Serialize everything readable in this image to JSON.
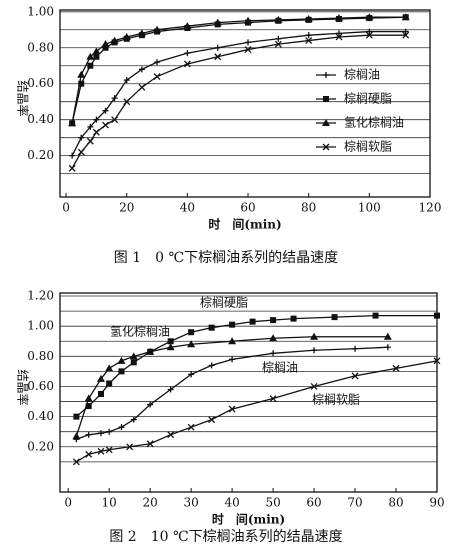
{
  "chart_data": [
    {
      "type": "line",
      "ylabel": "结晶率",
      "xlabel": "时　间(min)",
      "caption": "图 1　0 ℃下棕榈油系列的结晶速度",
      "xlim": [
        -2,
        120
      ],
      "xticks": [
        0,
        20,
        40,
        60,
        80,
        100,
        120
      ],
      "ylim": [
        -0.03,
        1.01
      ],
      "yticks": [
        {
          "value": 0.2,
          "label": "0.20"
        },
        {
          "value": 0.4,
          "label": "0.40"
        },
        {
          "value": 0.6,
          "label": "0.60"
        },
        {
          "value": 0.8,
          "label": "0.80"
        },
        {
          "value": 1,
          "label": "1.00"
        }
      ],
      "minor_yticks": [
        0.1,
        0.3,
        0.5,
        0.7,
        0.9
      ],
      "grid": true,
      "legend": "right",
      "series": [
        {
          "name": "棕榈油",
          "marker": "plus",
          "color": "#111111",
          "x": [
            2,
            5,
            8,
            10,
            13,
            16,
            20,
            25,
            30,
            40,
            50,
            60,
            70,
            80,
            90,
            100,
            112
          ],
          "values": [
            0.2,
            0.3,
            0.36,
            0.4,
            0.45,
            0.52,
            0.62,
            0.68,
            0.72,
            0.77,
            0.8,
            0.83,
            0.85,
            0.87,
            0.88,
            0.89,
            0.89
          ]
        },
        {
          "name": "棕榈硬脂",
          "marker": "square",
          "color": "#111111",
          "x": [
            2,
            5,
            8,
            10,
            13,
            16,
            20,
            25,
            30,
            40,
            50,
            60,
            70,
            80,
            90,
            100,
            112
          ],
          "values": [
            0.38,
            0.6,
            0.7,
            0.75,
            0.8,
            0.83,
            0.85,
            0.87,
            0.89,
            0.91,
            0.93,
            0.94,
            0.95,
            0.955,
            0.96,
            0.965,
            0.97
          ]
        },
        {
          "name": "氢化棕榈油",
          "marker": "triangle",
          "color": "#111111",
          "x": [
            2,
            5,
            8,
            10,
            13,
            16,
            20,
            25,
            30,
            40,
            50,
            60,
            70,
            80,
            90,
            100,
            112
          ],
          "values": [
            0.38,
            0.65,
            0.75,
            0.78,
            0.82,
            0.84,
            0.86,
            0.88,
            0.9,
            0.92,
            0.94,
            0.95,
            0.955,
            0.96,
            0.965,
            0.97,
            0.97
          ]
        },
        {
          "name": "棕榈软脂",
          "marker": "x",
          "color": "#111111",
          "x": [
            2,
            5,
            8,
            10,
            13,
            16,
            20,
            25,
            30,
            40,
            50,
            60,
            70,
            80,
            90,
            100,
            112
          ],
          "values": [
            0.13,
            0.22,
            0.28,
            0.33,
            0.37,
            0.4,
            0.5,
            0.58,
            0.64,
            0.71,
            0.75,
            0.79,
            0.82,
            0.84,
            0.86,
            0.87,
            0.87
          ]
        }
      ]
    },
    {
      "type": "line",
      "ylabel": "结晶率",
      "xlabel": "时　间(min)",
      "caption": "图 2　10 ℃下棕榈油系列的结晶速度",
      "xlim": [
        -2,
        90
      ],
      "xticks": [
        0,
        10,
        20,
        30,
        40,
        50,
        60,
        70,
        80,
        90
      ],
      "ylim": [
        -0.1,
        1.22
      ],
      "yticks": [
        {
          "value": 0.2,
          "label": "0.20"
        },
        {
          "value": 0.4,
          "label": "0.40"
        },
        {
          "value": 0.6,
          "label": "0.60"
        },
        {
          "value": 0.8,
          "label": "0.80"
        },
        {
          "value": 1,
          "label": "1.00"
        },
        {
          "value": 1.2,
          "label": "1.20"
        }
      ],
      "minor_yticks": [
        0.1,
        0.3,
        0.5,
        0.7,
        0.9,
        1.1
      ],
      "grid": true,
      "legend": "inline",
      "series": [
        {
          "name": "棕榈硬脂",
          "marker": "square",
          "color": "#111111",
          "x": [
            2,
            5,
            8,
            10,
            13,
            16,
            20,
            25,
            30,
            35,
            40,
            45,
            50,
            55,
            65,
            75,
            90
          ],
          "values": [
            0.4,
            0.47,
            0.55,
            0.62,
            0.7,
            0.76,
            0.83,
            0.9,
            0.96,
            0.99,
            1.01,
            1.03,
            1.04,
            1.05,
            1.06,
            1.07,
            1.07
          ]
        },
        {
          "name": "氢化棕榈油",
          "marker": "triangle",
          "color": "#111111",
          "x": [
            2,
            5,
            8,
            10,
            13,
            16,
            20,
            25,
            30,
            40,
            50,
            60,
            78
          ],
          "values": [
            0.27,
            0.52,
            0.65,
            0.72,
            0.77,
            0.8,
            0.83,
            0.86,
            0.88,
            0.9,
            0.92,
            0.93,
            0.93
          ]
        },
        {
          "name": "棕榈油",
          "marker": "plus",
          "color": "#111111",
          "x": [
            2,
            5,
            8,
            10,
            13,
            16,
            20,
            25,
            30,
            35,
            40,
            50,
            60,
            70,
            78
          ],
          "values": [
            0.25,
            0.28,
            0.29,
            0.3,
            0.33,
            0.38,
            0.48,
            0.58,
            0.68,
            0.74,
            0.78,
            0.82,
            0.84,
            0.85,
            0.86
          ]
        },
        {
          "name": "棕榈软脂",
          "marker": "x",
          "color": "#111111",
          "x": [
            2,
            5,
            8,
            10,
            15,
            20,
            25,
            30,
            35,
            40,
            50,
            60,
            70,
            80,
            90
          ],
          "values": [
            0.1,
            0.15,
            0.17,
            0.18,
            0.2,
            0.22,
            0.28,
            0.33,
            0.38,
            0.45,
            0.52,
            0.6,
            0.67,
            0.72,
            0.77
          ]
        }
      ]
    }
  ]
}
